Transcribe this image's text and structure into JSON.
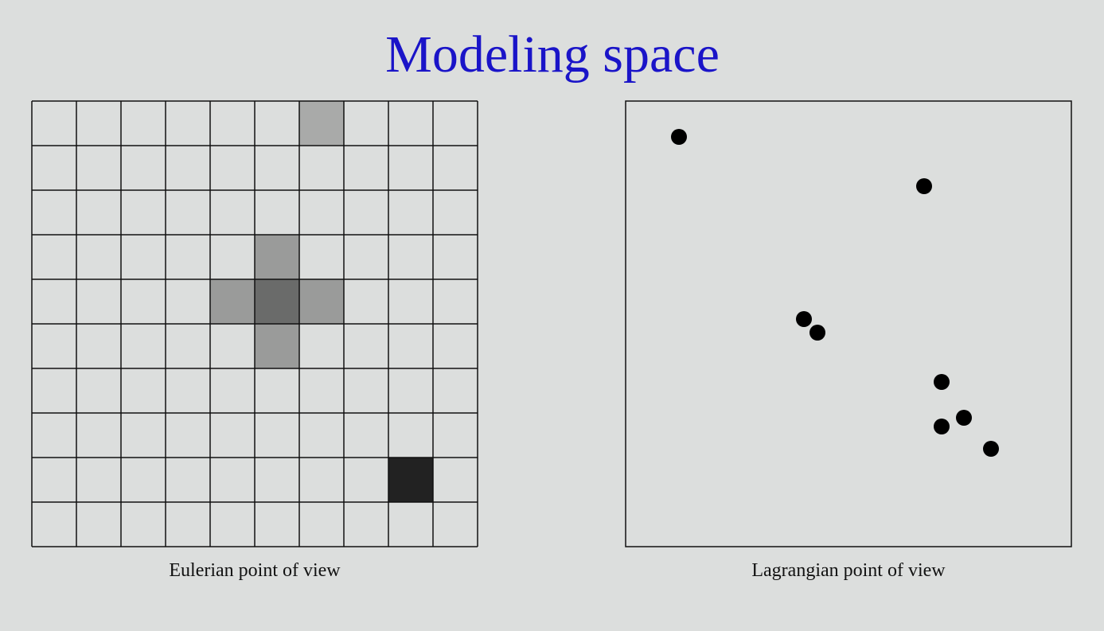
{
  "title": "Modeling space",
  "panels": [
    {
      "caption": "Eulerian point of view"
    },
    {
      "caption": "Lagrangian point of view"
    }
  ]
}
